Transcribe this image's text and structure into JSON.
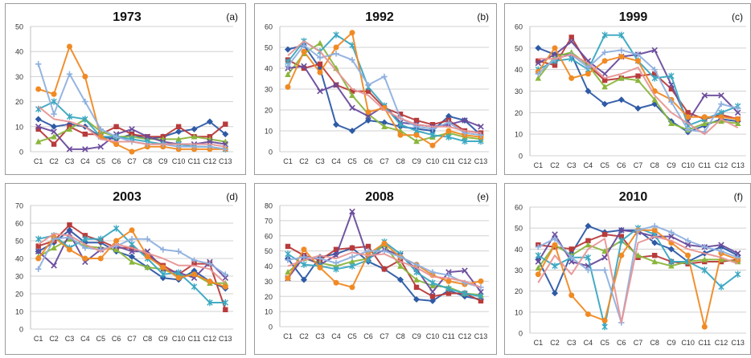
{
  "colors": {
    "grid": "#d0d0d0",
    "border": "#9a9a9a",
    "axis_text": "#333333",
    "series": [
      "#2e5aa6",
      "#b83b3b",
      "#8ab63c",
      "#6a4c9c",
      "#3aa8c1",
      "#f08a24",
      "#8fb0de",
      "#e89595"
    ]
  },
  "chart_data": [
    {
      "type": "line",
      "title": "1973",
      "panel_label": "(a)",
      "categories": [
        "C1",
        "C2",
        "C3",
        "C4",
        "C5",
        "C6",
        "C7",
        "C8",
        "C9",
        "C10",
        "C11",
        "C12",
        "C13"
      ],
      "ylim": [
        0,
        50
      ],
      "yticks": [
        0,
        10,
        20,
        30,
        40,
        50
      ],
      "grid": true,
      "series": [
        {
          "values": [
            13,
            10,
            11,
            10,
            6,
            5,
            7,
            5,
            6,
            8,
            9,
            12,
            7
          ],
          "marker": "diamond"
        },
        {
          "values": [
            9,
            3,
            10,
            7,
            7,
            10,
            7,
            6,
            6,
            10,
            6,
            6,
            11
          ],
          "marker": "square"
        },
        {
          "values": [
            4,
            6,
            9,
            13,
            8,
            6,
            6,
            5,
            5,
            5,
            6,
            5,
            4
          ],
          "marker": "triangle"
        },
        {
          "values": [
            10,
            8,
            1,
            1,
            2,
            7,
            9,
            6,
            4,
            3,
            3,
            4,
            3
          ],
          "marker": "x"
        },
        {
          "values": [
            17,
            20,
            14,
            13,
            6,
            6,
            5,
            4,
            3,
            3,
            2,
            2,
            1
          ],
          "marker": "star"
        },
        {
          "values": [
            25,
            23,
            42,
            30,
            6,
            3,
            0,
            2,
            2,
            1,
            1,
            1,
            1
          ],
          "marker": "circle"
        },
        {
          "values": [
            35,
            15,
            31,
            20,
            9,
            6,
            4,
            3,
            3,
            2,
            2,
            2,
            1
          ],
          "marker": "plus"
        },
        {
          "values": [
            18,
            13,
            12,
            10,
            5,
            4,
            4,
            3,
            3,
            3,
            3,
            3,
            2
          ],
          "marker": "none"
        }
      ]
    },
    {
      "type": "line",
      "title": "1992",
      "panel_label": "(b)",
      "categories": [
        "C1",
        "C2",
        "C3",
        "C4",
        "C5",
        "C6",
        "C7",
        "C8",
        "C9",
        "C10",
        "C11",
        "C12",
        "C13"
      ],
      "ylim": [
        0,
        60
      ],
      "yticks": [
        0,
        10,
        20,
        30,
        40,
        50,
        60
      ],
      "grid": true,
      "series": [
        {
          "values": [
            49,
            51,
            40,
            13,
            10,
            15,
            14,
            12,
            11,
            10,
            17,
            15,
            8
          ],
          "marker": "diamond"
        },
        {
          "values": [
            44,
            40,
            42,
            32,
            29,
            29,
            21,
            18,
            15,
            13,
            15,
            10,
            9
          ],
          "marker": "square"
        },
        {
          "values": [
            37,
            47,
            52,
            40,
            27,
            18,
            12,
            10,
            5,
            7,
            9,
            7,
            6
          ],
          "marker": "triangle"
        },
        {
          "values": [
            40,
            41,
            29,
            32,
            21,
            17,
            22,
            14,
            13,
            12,
            13,
            15,
            12
          ],
          "marker": "x"
        },
        {
          "values": [
            43,
            53,
            48,
            56,
            51,
            31,
            22,
            13,
            10,
            8,
            7,
            5,
            5
          ],
          "marker": "star"
        },
        {
          "values": [
            31,
            48,
            38,
            50,
            57,
            19,
            21,
            8,
            8,
            3,
            10,
            8,
            7
          ],
          "marker": "circle"
        },
        {
          "values": [
            41,
            51,
            45,
            47,
            44,
            32,
            36,
            16,
            12,
            11,
            14,
            9,
            8
          ],
          "marker": "plus"
        },
        {
          "values": [
            46,
            53,
            48,
            39,
            30,
            27,
            20,
            16,
            13,
            12,
            12,
            10,
            9
          ],
          "marker": "none"
        }
      ]
    },
    {
      "type": "line",
      "title": "1999",
      "panel_label": "(c)",
      "categories": [
        "C1",
        "C2",
        "C3",
        "C4",
        "C5",
        "C6",
        "C7",
        "C8",
        "C9",
        "C10",
        "C11",
        "C12",
        "C13"
      ],
      "ylim": [
        0,
        60
      ],
      "yticks": [
        0,
        10,
        20,
        30,
        40,
        50,
        60
      ],
      "grid": true,
      "series": [
        {
          "values": [
            50,
            47,
            47,
            30,
            24,
            26,
            22,
            24,
            16,
            11,
            14,
            17,
            16
          ],
          "marker": "diamond"
        },
        {
          "values": [
            44,
            42,
            55,
            42,
            35,
            36,
            37,
            38,
            31,
            20,
            17,
            19,
            17
          ],
          "marker": "square"
        },
        {
          "values": [
            36,
            46,
            48,
            42,
            32,
            36,
            35,
            26,
            15,
            12,
            15,
            16,
            15
          ],
          "marker": "triangle"
        },
        {
          "values": [
            43,
            47,
            53,
            44,
            38,
            46,
            47,
            49,
            33,
            16,
            28,
            28,
            20
          ],
          "marker": "x"
        },
        {
          "values": [
            40,
            44,
            45,
            40,
            56,
            56,
            44,
            36,
            37,
            14,
            17,
            20,
            23
          ],
          "marker": "star"
        },
        {
          "values": [
            39,
            50,
            36,
            38,
            44,
            46,
            44,
            30,
            26,
            18,
            18,
            18,
            17
          ],
          "marker": "circle"
        },
        {
          "values": [
            38,
            45,
            47,
            41,
            48,
            49,
            47,
            40,
            25,
            12,
            11,
            24,
            22
          ],
          "marker": "plus"
        },
        {
          "values": [
            45,
            45,
            47,
            43,
            36,
            38,
            41,
            28,
            20,
            15,
            10,
            17,
            13
          ],
          "marker": "none"
        }
      ]
    },
    {
      "type": "line",
      "title": "2003",
      "panel_label": "(d)",
      "categories": [
        "C1",
        "C2",
        "C3",
        "C4",
        "C5",
        "C6",
        "C7",
        "C8",
        "C9",
        "C10",
        "C11",
        "C12",
        "C13"
      ],
      "ylim": [
        0,
        70
      ],
      "yticks": [
        0,
        10,
        20,
        30,
        40,
        50,
        60,
        70
      ],
      "grid": true,
      "series": [
        {
          "values": [
            44,
            49,
            56,
            49,
            49,
            44,
            41,
            35,
            29,
            28,
            33,
            27,
            23
          ],
          "marker": "diamond"
        },
        {
          "values": [
            47,
            50,
            59,
            53,
            50,
            46,
            46,
            42,
            36,
            31,
            37,
            37,
            11
          ],
          "marker": "square"
        },
        {
          "values": [
            41,
            46,
            51,
            47,
            46,
            45,
            38,
            35,
            34,
            30,
            31,
            26,
            26
          ],
          "marker": "triangle"
        },
        {
          "values": [
            44,
            36,
            54,
            38,
            45,
            47,
            44,
            44,
            34,
            32,
            29,
            38,
            29
          ],
          "marker": "x"
        },
        {
          "values": [
            51,
            53,
            46,
            51,
            51,
            57,
            48,
            40,
            31,
            32,
            24,
            15,
            15
          ],
          "marker": "star"
        },
        {
          "values": [
            40,
            52,
            45,
            40,
            40,
            50,
            56,
            41,
            35,
            29,
            31,
            27,
            24
          ],
          "marker": "circle"
        },
        {
          "values": [
            34,
            51,
            52,
            46,
            45,
            47,
            51,
            51,
            45,
            44,
            39,
            37,
            31
          ],
          "marker": "plus"
        },
        {
          "values": [
            48,
            54,
            53,
            48,
            44,
            48,
            46,
            43,
            40,
            36,
            36,
            34,
            26
          ],
          "marker": "none"
        }
      ]
    },
    {
      "type": "line",
      "title": "2008",
      "panel_label": "(e)",
      "categories": [
        "C1",
        "C2",
        "C3",
        "C4",
        "C5",
        "C6",
        "C7",
        "C8",
        "C9",
        "C10",
        "C11",
        "C12",
        "C13"
      ],
      "ylim": [
        0,
        80
      ],
      "yticks": [
        0,
        10,
        20,
        30,
        40,
        50,
        60,
        70,
        80
      ],
      "grid": true,
      "series": [
        {
          "values": [
            45,
            31,
            46,
            48,
            52,
            43,
            38,
            31,
            18,
            17,
            24,
            20,
            18
          ],
          "marker": "diamond"
        },
        {
          "values": [
            53,
            47,
            44,
            51,
            52,
            53,
            38,
            44,
            26,
            20,
            22,
            22,
            17
          ],
          "marker": "square"
        },
        {
          "values": [
            36,
            45,
            42,
            40,
            43,
            45,
            54,
            40,
            31,
            27,
            26,
            22,
            21
          ],
          "marker": "triangle"
        },
        {
          "values": [
            32,
            46,
            41,
            47,
            76,
            45,
            51,
            47,
            38,
            23,
            36,
            37,
            23
          ],
          "marker": "x"
        },
        {
          "values": [
            48,
            41,
            40,
            38,
            40,
            44,
            56,
            48,
            36,
            29,
            25,
            22,
            20
          ],
          "marker": "star"
        },
        {
          "values": [
            32,
            51,
            39,
            29,
            26,
            48,
            55,
            46,
            41,
            34,
            30,
            28,
            30
          ],
          "marker": "circle"
        },
        {
          "values": [
            44,
            46,
            45,
            42,
            46,
            50,
            50,
            46,
            41,
            36,
            34,
            29,
            26
          ],
          "marker": "plus"
        },
        {
          "values": [
            40,
            44,
            47,
            45,
            49,
            47,
            48,
            43,
            39,
            33,
            32,
            30,
            26
          ],
          "marker": "none"
        }
      ]
    },
    {
      "type": "line",
      "title": "2010",
      "panel_label": "(f)",
      "categories": [
        "C1",
        "C2",
        "C3",
        "C4",
        "C5",
        "C6",
        "C7",
        "C8",
        "C9",
        "C10",
        "C11",
        "C12",
        "C13"
      ],
      "ylim": [
        0,
        60
      ],
      "yticks": [
        0,
        10,
        20,
        30,
        40,
        50,
        60
      ],
      "grid": true,
      "series": [
        {
          "values": [
            35,
            19,
            38,
            51,
            48,
            49,
            49,
            43,
            40,
            34,
            38,
            41,
            37
          ],
          "marker": "diamond"
        },
        {
          "values": [
            42,
            41,
            40,
            44,
            47,
            46,
            36,
            37,
            34,
            33,
            34,
            34,
            35
          ],
          "marker": "square"
        },
        {
          "values": [
            31,
            42,
            37,
            42,
            39,
            44,
            37,
            34,
            32,
            34,
            35,
            35,
            34
          ],
          "marker": "triangle"
        },
        {
          "values": [
            34,
            47,
            34,
            32,
            36,
            49,
            48,
            46,
            46,
            42,
            41,
            42,
            38
          ],
          "marker": "x"
        },
        {
          "values": [
            37,
            32,
            36,
            36,
            3,
            44,
            50,
            47,
            34,
            34,
            30,
            22,
            28
          ],
          "marker": "star"
        },
        {
          "values": [
            28,
            42,
            18,
            9,
            6,
            37,
            49,
            49,
            43,
            37,
            3,
            38,
            35
          ],
          "marker": "circle"
        },
        {
          "values": [
            41,
            45,
            36,
            30,
            30,
            5,
            49,
            51,
            48,
            44,
            41,
            39,
            36
          ],
          "marker": "plus"
        },
        {
          "values": [
            24,
            37,
            28,
            40,
            45,
            5,
            43,
            46,
            44,
            40,
            38,
            36,
            33
          ],
          "marker": "none"
        }
      ]
    }
  ]
}
